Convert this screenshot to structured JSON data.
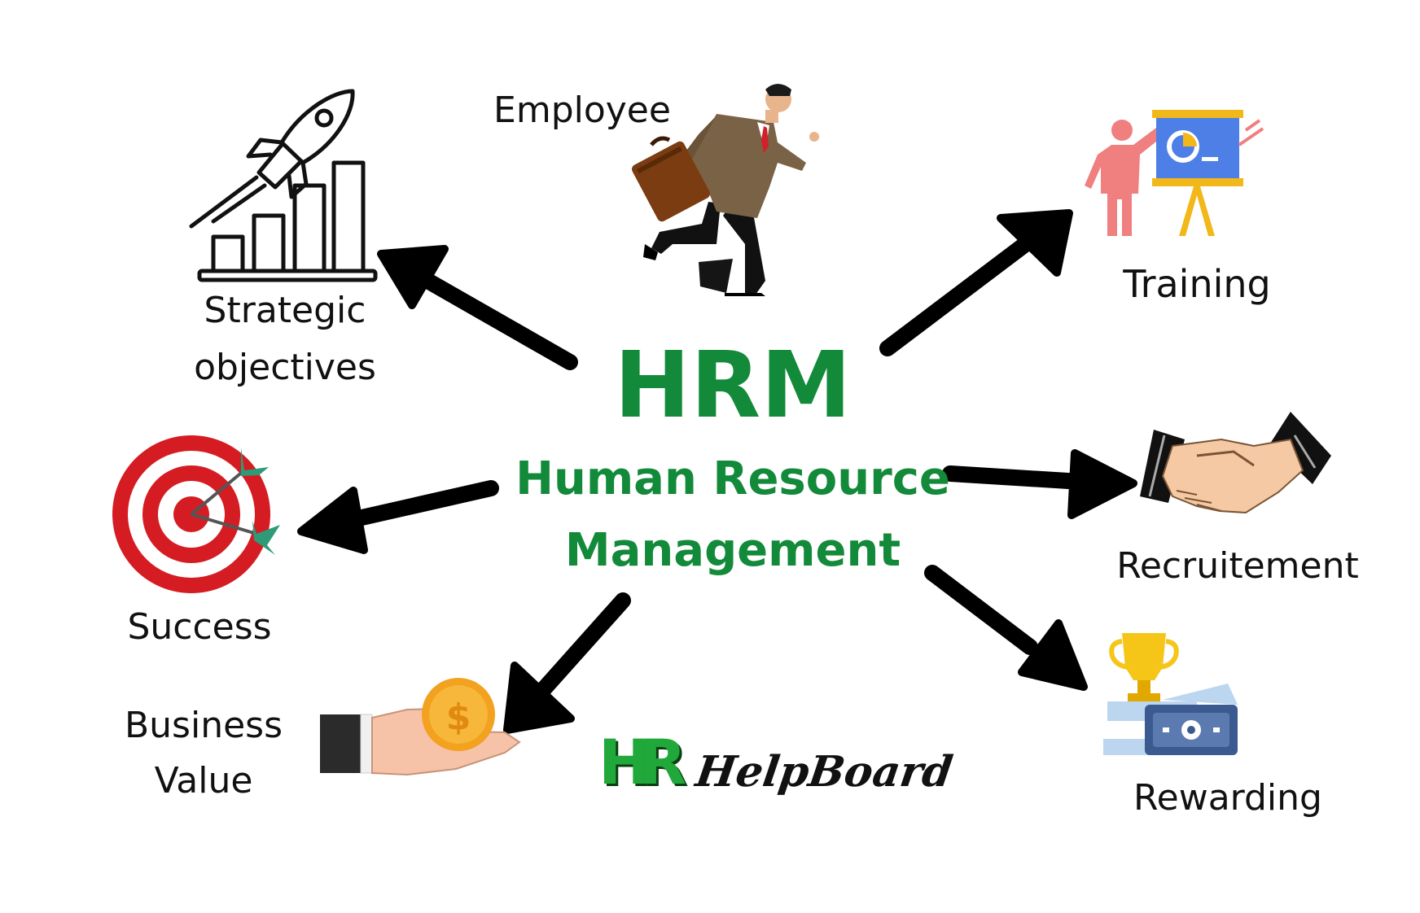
{
  "title": "HRM",
  "subtitle_line1": "Human Resource",
  "subtitle_line2": "Management",
  "nodes": {
    "strategic": {
      "line1": "Strategic",
      "line2": "objectives",
      "icon": "rocket-bar-chart-icon"
    },
    "employee": {
      "label": "Employee",
      "icon": "running-businessman-icon"
    },
    "training": {
      "label": "Training",
      "icon": "presentation-board-icon"
    },
    "success": {
      "label": "Success",
      "icon": "target-dartboard-icon"
    },
    "recruitement": {
      "label": "Recruitement",
      "icon": "handshake-icon"
    },
    "business_value": {
      "line1": "Business",
      "line2": "Value",
      "icon": "hand-coin-icon"
    },
    "rewarding": {
      "label": "Rewarding",
      "icon": "trophy-cash-icon"
    }
  },
  "logo": {
    "mark": "HR",
    "text": "HelpBoard"
  },
  "colors": {
    "center_text": "#128a3a",
    "arrow": "#000000",
    "logo_green": "#21a83a"
  }
}
